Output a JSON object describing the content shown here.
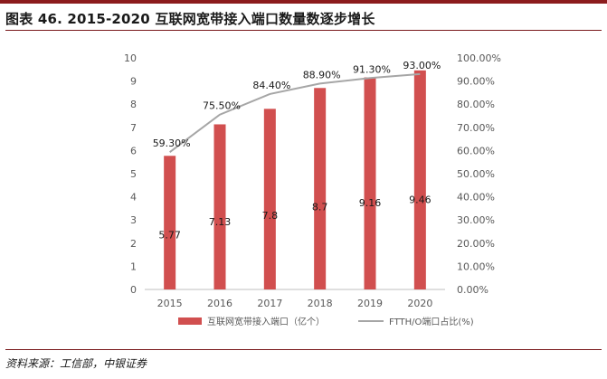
{
  "header": {
    "title": "图表 46. 2015-2020 互联网宽带接入端口数量数逐步增长"
  },
  "footer": {
    "source": "资料来源：工信部，中银证券"
  },
  "colors": {
    "bar": "#d14f4f",
    "line": "#a6a6a6",
    "rule": "#8c1c1e"
  },
  "chart_data": {
    "type": "bar",
    "categories": [
      "2015",
      "2016",
      "2017",
      "2018",
      "2019",
      "2020"
    ],
    "series": [
      {
        "name": "互联网宽带接入端口（亿个）",
        "kind": "bar",
        "axis": "left",
        "values": [
          5.77,
          7.13,
          7.8,
          8.7,
          9.16,
          9.46
        ],
        "labels": [
          "5.77",
          "7.13",
          "7.8",
          "8.7",
          "9.16",
          "9.46"
        ]
      },
      {
        "name": "FTTH/O端口占比(%)",
        "kind": "line",
        "axis": "right",
        "values": [
          59.3,
          75.5,
          84.4,
          88.9,
          91.3,
          93.0
        ],
        "labels": [
          "59.30%",
          "75.50%",
          "84.40%",
          "88.90%",
          "91.30%",
          "93.00%"
        ]
      }
    ],
    "y_left": {
      "ylim": [
        0,
        10
      ],
      "ticks": [
        "0",
        "1",
        "2",
        "3",
        "4",
        "5",
        "6",
        "7",
        "8",
        "9",
        "10"
      ]
    },
    "y_right": {
      "ylim": [
        0,
        100
      ],
      "ticks": [
        "0.00%",
        "10.00%",
        "20.00%",
        "30.00%",
        "40.00%",
        "50.00%",
        "60.00%",
        "70.00%",
        "80.00%",
        "90.00%",
        "100.00%"
      ]
    },
    "grid": false,
    "legend": "bottom-center"
  }
}
